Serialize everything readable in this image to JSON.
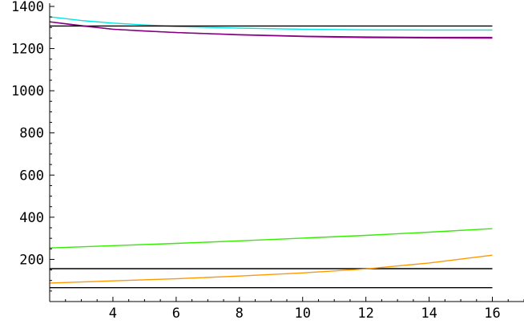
{
  "chart_data": {
    "type": "line",
    "title": "",
    "xlabel": "",
    "ylabel": "",
    "xlim": [
      2,
      17
    ],
    "ylim": [
      0,
      1400
    ],
    "x_ticks": [
      4,
      6,
      8,
      10,
      12,
      14,
      16
    ],
    "y_ticks": [
      200,
      400,
      600,
      800,
      1000,
      1200,
      1400
    ],
    "grid": false,
    "legend": "none",
    "series": [
      {
        "color": "#00e5e5",
        "x": [
          2,
          3,
          4,
          5,
          6,
          8,
          10,
          12,
          14,
          16
        ],
        "values": [
          1351,
          1333,
          1321,
          1312,
          1305,
          1297,
          1292,
          1289,
          1288,
          1288
        ]
      },
      {
        "color": "#b000b0",
        "x": [
          2,
          3,
          4,
          5,
          6,
          8,
          10,
          12,
          14,
          16
        ],
        "values": [
          1327,
          1307,
          1292,
          1283,
          1276,
          1265,
          1257,
          1252,
          1250,
          1249
        ]
      },
      {
        "color": "#000000",
        "x": [
          2,
          16
        ],
        "values": [
          1307,
          1307
        ]
      },
      {
        "color": "#800080",
        "x": [
          2,
          4,
          6,
          8,
          10,
          12,
          14,
          16
        ],
        "values": [
          1327,
          1292,
          1276,
          1266,
          1259,
          1255,
          1253,
          1253
        ]
      },
      {
        "color": "#33ee00",
        "x": [
          2,
          4,
          6,
          8,
          10,
          12,
          14,
          16
        ],
        "values": [
          254,
          265,
          276,
          288,
          301,
          314,
          329,
          346
        ]
      },
      {
        "color": "#000000",
        "x": [
          2,
          16
        ],
        "values": [
          156,
          156
        ]
      },
      {
        "color": "#ff9900",
        "x": [
          2,
          4,
          6,
          8,
          10,
          12,
          14,
          16
        ],
        "values": [
          88,
          98,
          108,
          121,
          136,
          155,
          183,
          220
        ]
      },
      {
        "color": "#000000",
        "x": [
          2,
          16
        ],
        "values": [
          66,
          66
        ]
      }
    ]
  }
}
